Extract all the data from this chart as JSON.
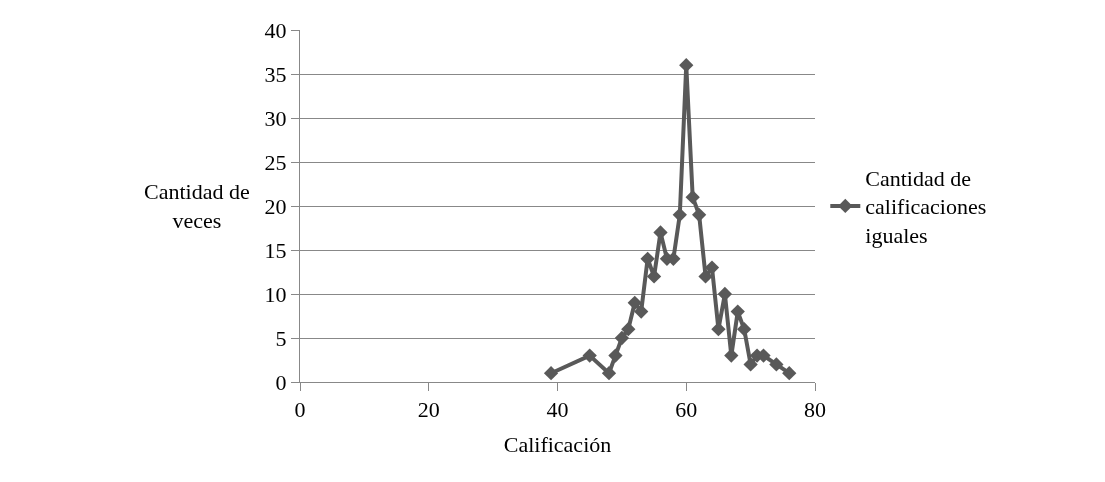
{
  "chart_data": {
    "type": "line",
    "xlabel": "Calificación",
    "ylabel": "Cantidad de veces",
    "x": [
      39,
      45,
      48,
      49,
      50,
      51,
      52,
      53,
      54,
      55,
      56,
      57,
      58,
      59,
      60,
      61,
      62,
      63,
      64,
      65,
      66,
      67,
      68,
      69,
      70,
      71,
      72,
      74,
      76
    ],
    "series": [
      {
        "name": "Cantidad de calificaciones iguales",
        "color": "#595959",
        "values": [
          1,
          3,
          1,
          3,
          5,
          6,
          9,
          8,
          14,
          12,
          17,
          14,
          14,
          19,
          36,
          21,
          19,
          12,
          13,
          6,
          10,
          3,
          8,
          6,
          2,
          3,
          3,
          2,
          1
        ]
      }
    ],
    "xlim": [
      0,
      80
    ],
    "xticks": [
      0,
      20,
      40,
      60,
      80
    ],
    "ylim": [
      0,
      40
    ],
    "yticks": [
      0,
      5,
      10,
      15,
      20,
      25,
      30,
      35,
      40
    ],
    "grid": "y",
    "legend": "right",
    "marker": "diamond",
    "line_style": "solid"
  }
}
